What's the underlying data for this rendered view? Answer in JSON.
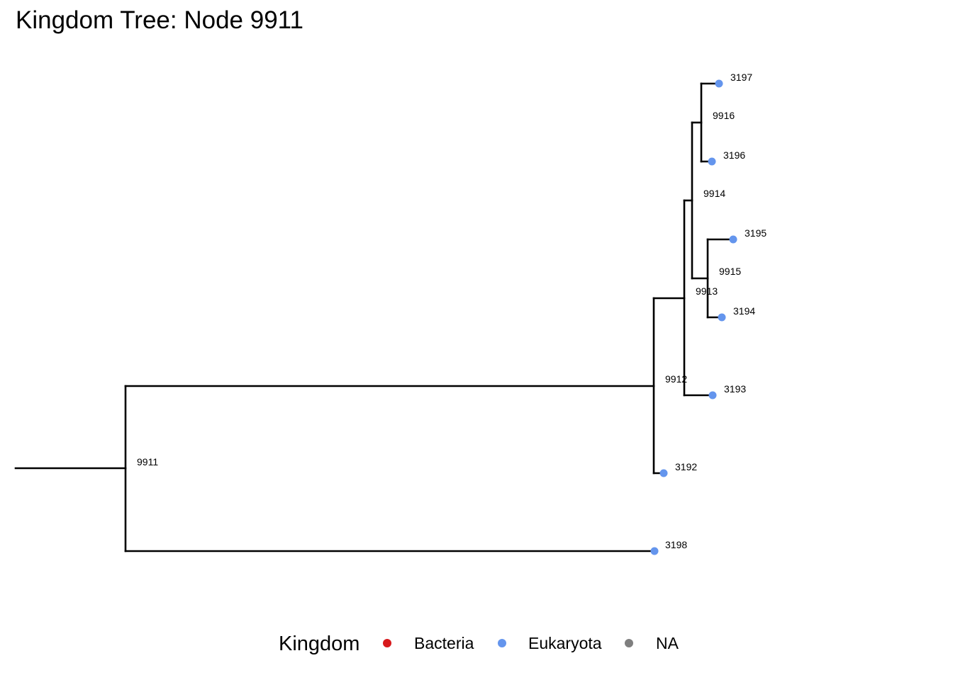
{
  "title": "Kingdom Tree: Node 9911",
  "tree": {
    "root": "9911",
    "internal_nodes": [
      {
        "id": "9911",
        "children": [
          "9912",
          "3198"
        ]
      },
      {
        "id": "9912",
        "children": [
          "9913",
          "3192"
        ]
      },
      {
        "id": "9913",
        "children": [
          "9914",
          "3193"
        ]
      },
      {
        "id": "9914",
        "children": [
          "9916",
          "9915"
        ]
      },
      {
        "id": "9916",
        "children": [
          "3197",
          "3196"
        ]
      },
      {
        "id": "9915",
        "children": [
          "3195",
          "3194"
        ]
      }
    ],
    "tips": [
      {
        "id": "3197",
        "kingdom": "Eukaryota"
      },
      {
        "id": "3196",
        "kingdom": "Eukaryota"
      },
      {
        "id": "3195",
        "kingdom": "Eukaryota"
      },
      {
        "id": "3194",
        "kingdom": "Eukaryota"
      },
      {
        "id": "3193",
        "kingdom": "Eukaryota"
      },
      {
        "id": "3192",
        "kingdom": "Eukaryota"
      },
      {
        "id": "3198",
        "kingdom": "Eukaryota"
      }
    ]
  },
  "legend": {
    "title": "Kingdom",
    "items": [
      {
        "label": "Bacteria",
        "color": "#d7191c"
      },
      {
        "label": "Eukaryota",
        "color": "#6495ed"
      },
      {
        "label": "NA",
        "color": "#7f7f7f"
      }
    ]
  }
}
